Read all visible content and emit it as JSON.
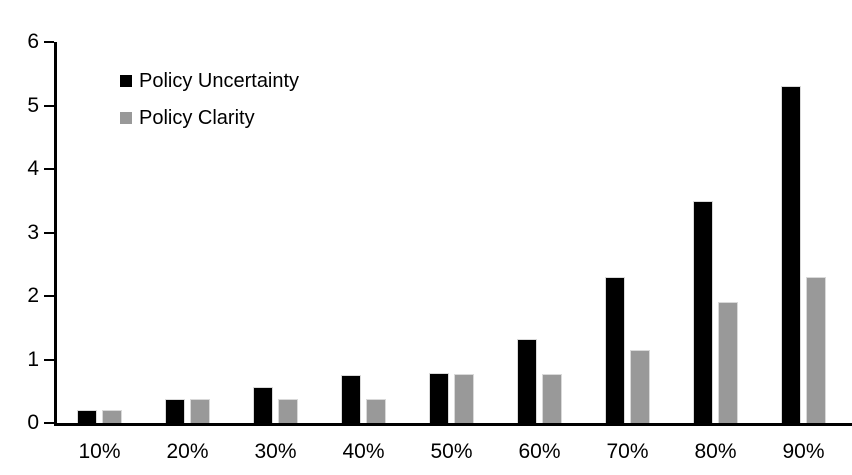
{
  "chart_data": {
    "type": "bar",
    "title": "",
    "xlabel": "",
    "ylabel": "",
    "categories": [
      "10%",
      "20%",
      "30%",
      "40%",
      "50%",
      "60%",
      "70%",
      "80%",
      "90%"
    ],
    "series": [
      {
        "name": "Policy Uncertainty",
        "color": "#000000",
        "values": [
          0.2,
          0.38,
          0.57,
          0.76,
          0.78,
          1.33,
          2.3,
          3.5,
          5.3
        ]
      },
      {
        "name": "Policy Clarity",
        "color": "#999999",
        "values": [
          0.2,
          0.38,
          0.38,
          0.38,
          0.77,
          0.77,
          1.15,
          1.9,
          2.3
        ]
      }
    ],
    "ylim": [
      0,
      6
    ],
    "yticks": [
      0,
      1,
      2,
      3,
      4,
      5,
      6
    ],
    "grid": false,
    "legend_position": "upper-left-inside",
    "axis_color": "#000000",
    "background_color": "#ffffff"
  }
}
